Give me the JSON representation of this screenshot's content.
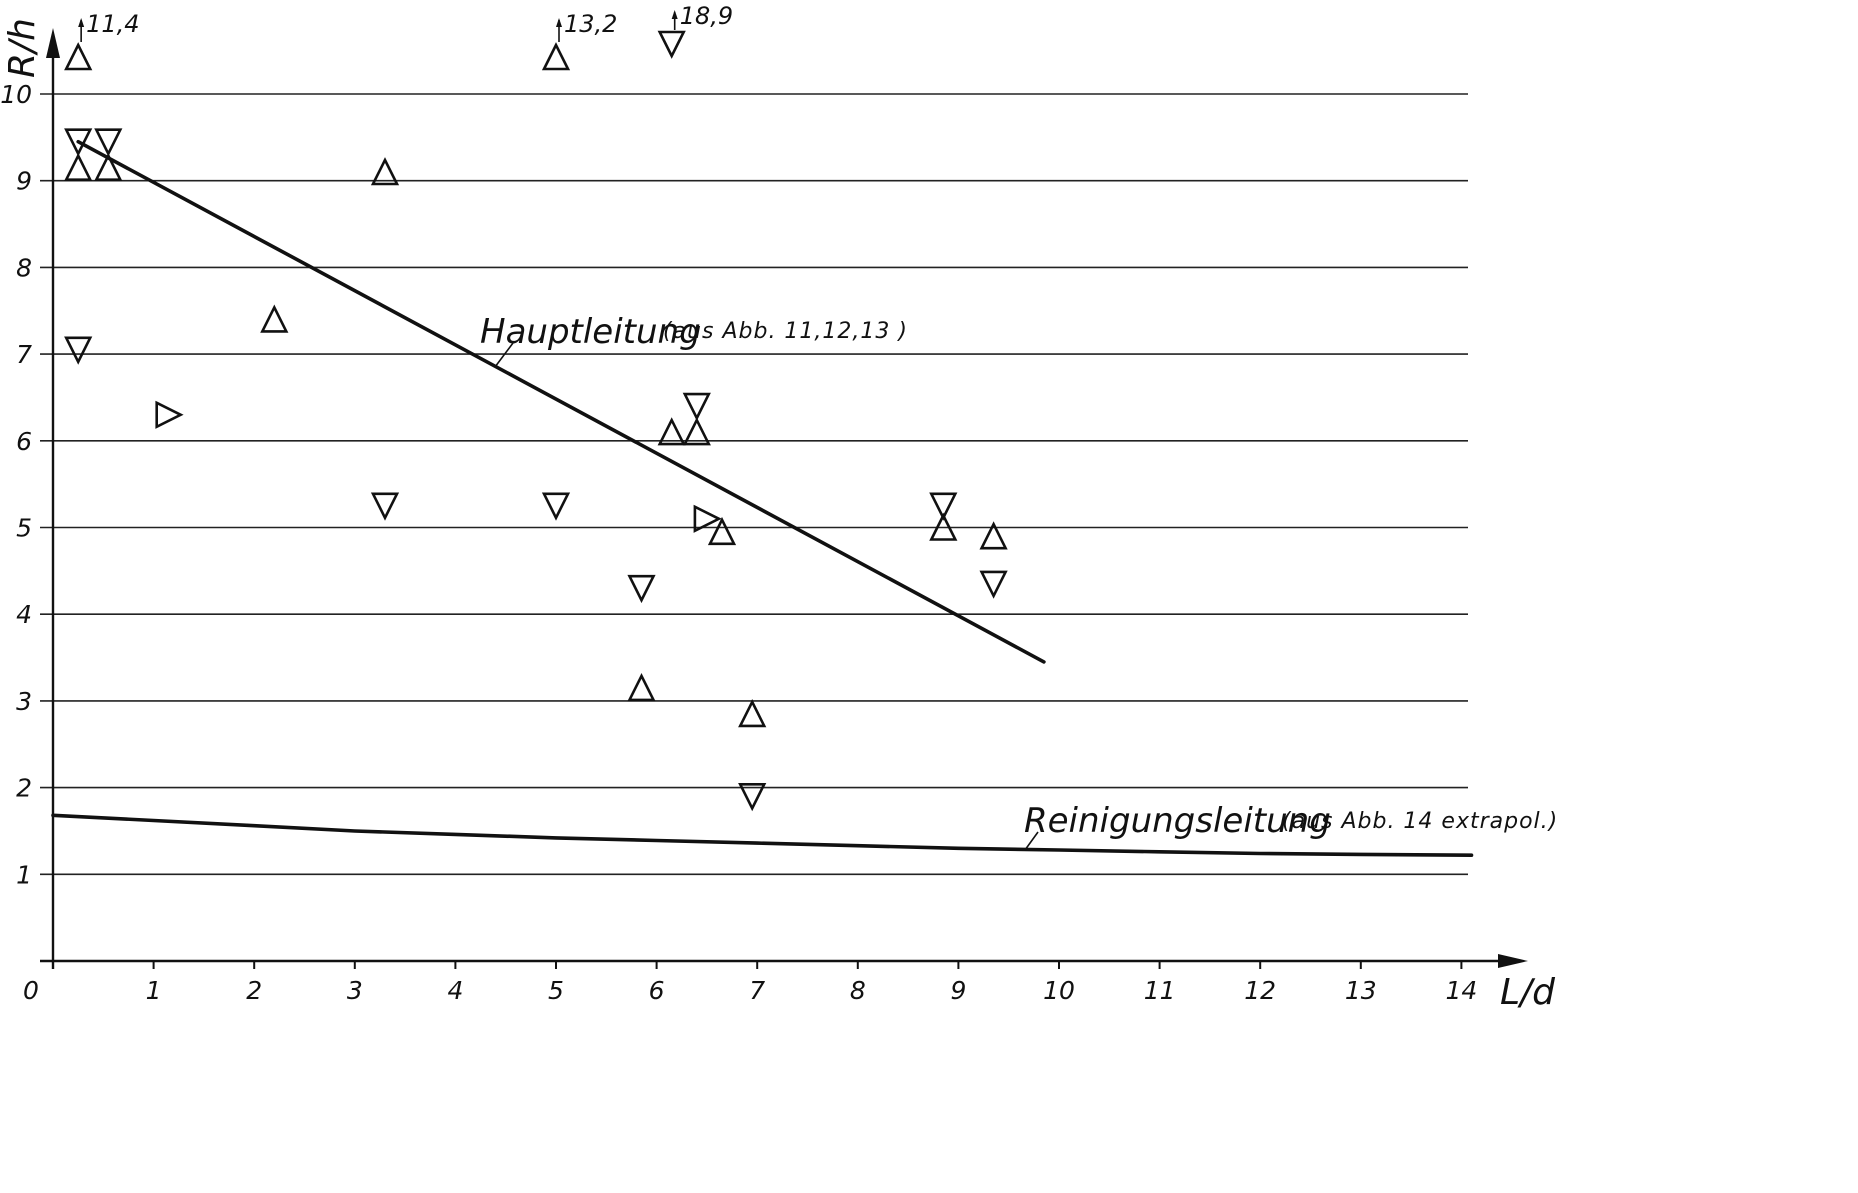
{
  "chart_data": {
    "type": "scatter",
    "title": "",
    "xlabel": "L/d",
    "ylabel": "R/h",
    "xlim": [
      0,
      14
    ],
    "ylim": [
      0,
      10
    ],
    "x_ticks": [
      "0",
      "1",
      "2",
      "3",
      "4",
      "5",
      "6",
      "7",
      "8",
      "9",
      "10",
      "11",
      "12",
      "13",
      "14"
    ],
    "y_ticks": [
      "1",
      "2",
      "3",
      "4",
      "5",
      "6",
      "7",
      "8",
      "9",
      "10"
    ],
    "grid": "horizontal",
    "series": [
      {
        "marker": "triangle-up",
        "points": [
          {
            "x": 0.25,
            "y": 9.15
          },
          {
            "x": 0.55,
            "y": 9.15
          },
          {
            "x": 2.2,
            "y": 7.4
          },
          {
            "x": 3.3,
            "y": 9.1
          },
          {
            "x": 6.15,
            "y": 6.1
          },
          {
            "x": 6.4,
            "y": 6.1
          },
          {
            "x": 6.65,
            "y": 4.95
          },
          {
            "x": 5.85,
            "y": 3.15
          },
          {
            "x": 6.95,
            "y": 2.85
          },
          {
            "x": 8.85,
            "y": 5.0
          },
          {
            "x": 9.35,
            "y": 4.9
          }
        ]
      },
      {
        "marker": "triangle-down",
        "points": [
          {
            "x": 0.25,
            "y": 9.45
          },
          {
            "x": 0.55,
            "y": 9.45
          },
          {
            "x": 0.25,
            "y": 7.05
          },
          {
            "x": 3.3,
            "y": 5.25
          },
          {
            "x": 5.0,
            "y": 5.25
          },
          {
            "x": 6.4,
            "y": 6.4
          },
          {
            "x": 5.85,
            "y": 4.3
          },
          {
            "x": 6.95,
            "y": 1.9
          },
          {
            "x": 8.85,
            "y": 5.25
          },
          {
            "x": 9.35,
            "y": 4.35
          }
        ]
      },
      {
        "marker": "triangle-right",
        "points": [
          {
            "x": 1.15,
            "y": 6.3
          },
          {
            "x": 6.5,
            "y": 5.1
          }
        ]
      }
    ],
    "off_scale_points": [
      {
        "x": 0.25,
        "marker": "triangle-up",
        "label": "11,4"
      },
      {
        "x": 5.0,
        "marker": "triangle-up",
        "label": "13,2"
      },
      {
        "x": 6.15,
        "marker": "triangle-down",
        "label": "18,9"
      }
    ],
    "lines": [
      {
        "name": "Hauptleitung",
        "note": "(aus Abb. 11,12,13 )",
        "points": [
          [
            0.25,
            9.45
          ],
          [
            9.85,
            3.45
          ]
        ]
      },
      {
        "name": "Reinigungsleitung",
        "note": "(aus Abb. 14 extrapol.)",
        "points": [
          [
            0.0,
            1.68
          ],
          [
            1.0,
            1.62
          ],
          [
            2.0,
            1.56
          ],
          [
            3.0,
            1.5
          ],
          [
            4.0,
            1.46
          ],
          [
            5.0,
            1.42
          ],
          [
            6.0,
            1.39
          ],
          [
            7.0,
            1.36
          ],
          [
            8.0,
            1.33
          ],
          [
            9.0,
            1.3
          ],
          [
            10.0,
            1.28
          ],
          [
            11.0,
            1.26
          ],
          [
            12.0,
            1.24
          ],
          [
            13.0,
            1.23
          ],
          [
            14.1,
            1.22
          ]
        ]
      }
    ]
  }
}
